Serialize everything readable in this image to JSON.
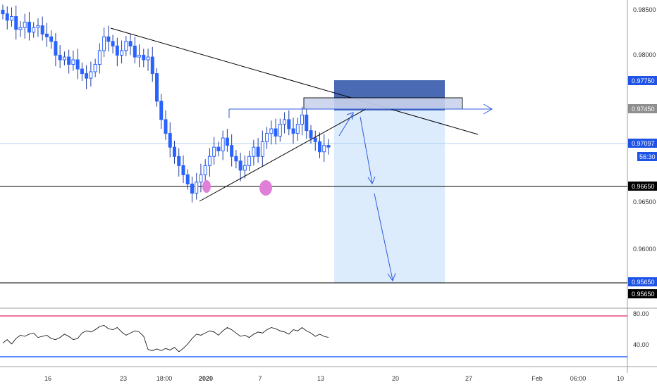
{
  "colors": {
    "candle_up": "#2962ff",
    "candle_down": "#2962ff",
    "wick": "#1e3c9c",
    "trendline": "#000000",
    "arrow": "#2f5be0",
    "target_zone": "#d6e9fb",
    "stop_zone": "#4a6ab3",
    "marker": "#e07fd8",
    "rsi_line": "#000000",
    "rsi_upper": "#e0245e",
    "rsi_lower": "#2962ff",
    "current_price_label": "#1e53e5",
    "level_label": "#000000"
  },
  "price_axis": {
    "ticks": [
      "0.98500",
      "0.98000",
      "0.96500",
      "0.96000"
    ],
    "labels": {
      "stop_level": "0.97750",
      "entry_level": "0.97450",
      "current_price": "0.97097",
      "countdown": "56:30",
      "support_level": "0.96650",
      "target_level_1": "0.95650",
      "target_level_2": "0.95650"
    }
  },
  "rsi_axis": {
    "ticks": [
      "80.00",
      "40.00"
    ]
  },
  "time_axis": {
    "ticks": [
      "16",
      "23",
      "18:00",
      "2020",
      "7",
      "13",
      "20",
      "27",
      "Feb",
      "06:00",
      "10"
    ]
  },
  "chart_data": {
    "type": "candlestick",
    "y_range": [
      0.9535,
      0.987
    ],
    "levels": {
      "support": 0.9665,
      "target": 0.9565,
      "entry": 0.9745,
      "stop": 0.9775
    },
    "candles_close_path": [
      0.9855,
      0.9848,
      0.9852,
      0.9838,
      0.984,
      0.9846,
      0.9835,
      0.984,
      0.9842,
      0.9833,
      0.983,
      0.9825,
      0.981,
      0.9805,
      0.9808,
      0.98,
      0.9805,
      0.9795,
      0.979,
      0.9785,
      0.9792,
      0.98,
      0.9815,
      0.983,
      0.9825,
      0.982,
      0.981,
      0.9815,
      0.9825,
      0.982,
      0.9808,
      0.981,
      0.9805,
      0.9808,
      0.979,
      0.976,
      0.974,
      0.9725,
      0.971,
      0.97,
      0.969,
      0.968,
      0.967,
      0.966,
      0.9672,
      0.968,
      0.969,
      0.97,
      0.971,
      0.9706,
      0.972,
      0.9712,
      0.97,
      0.9695,
      0.9685,
      0.969,
      0.97,
      0.971,
      0.97,
      0.9716,
      0.9725,
      0.973,
      0.9722,
      0.9735,
      0.974,
      0.973,
      0.9725,
      0.9735,
      0.9745,
      0.9728,
      0.972,
      0.9716,
      0.9705,
      0.9712,
      0.971
    ],
    "rsi_values": [
      38,
      44,
      36,
      46,
      52,
      50,
      54,
      56,
      48,
      50,
      52,
      46,
      44,
      48,
      54,
      50,
      44,
      46,
      56,
      60,
      58,
      62,
      68,
      70,
      64,
      62,
      66,
      58,
      52,
      56,
      60,
      58,
      50,
      26,
      24,
      27,
      24,
      28,
      25,
      30,
      22,
      28,
      36,
      46,
      54,
      52,
      56,
      60,
      58,
      52,
      60,
      66,
      62,
      56,
      50,
      52,
      48,
      54,
      58,
      56,
      62,
      66,
      64,
      60,
      58,
      54,
      62,
      60,
      66,
      60,
      56,
      50,
      54,
      50,
      48
    ],
    "rsi_upper_level": 80,
    "rsi_lower_level": 30
  }
}
